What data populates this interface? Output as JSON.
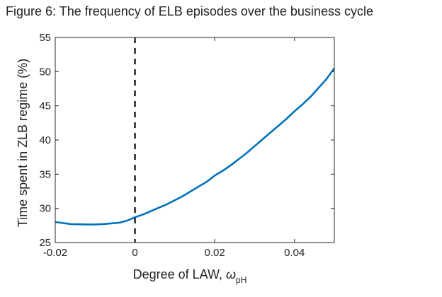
{
  "figure": {
    "caption": "Figure 6: The frequency of ELB episodes over the business cycle"
  },
  "chart_data": {
    "type": "line",
    "ylabel": "Time spent in ZLB regime (%)",
    "xlabel": {
      "text": "Degree of LAW, ",
      "symbol": "ω",
      "subscript": "pH"
    },
    "xlim": [
      -0.02,
      0.05
    ],
    "ylim": [
      25,
      55
    ],
    "x_ticks": [
      {
        "value": -0.02,
        "label": "-0.02"
      },
      {
        "value": 0,
        "label": "0"
      },
      {
        "value": 0.02,
        "label": "0.02"
      },
      {
        "value": 0.04,
        "label": "0.04"
      }
    ],
    "y_ticks": [
      {
        "value": 25,
        "label": "25"
      },
      {
        "value": 30,
        "label": "30"
      },
      {
        "value": 35,
        "label": "35"
      },
      {
        "value": 40,
        "label": "40"
      },
      {
        "value": 45,
        "label": "45"
      },
      {
        "value": 50,
        "label": "50"
      },
      {
        "value": 55,
        "label": "55"
      }
    ],
    "grid": false,
    "reference_line": {
      "x": 0,
      "style": "dashed",
      "color": "#000000"
    },
    "series": [
      {
        "color": "#0072BD",
        "x": [
          -0.02,
          -0.016,
          -0.012,
          -0.01,
          -0.008,
          -0.006,
          -0.004,
          -0.002,
          0,
          0.002,
          0.004,
          0.006,
          0.008,
          0.01,
          0.012,
          0.014,
          0.016,
          0.018,
          0.02,
          0.022,
          0.024,
          0.026,
          0.028,
          0.03,
          0.032,
          0.034,
          0.036,
          0.038,
          0.04,
          0.042,
          0.044,
          0.046,
          0.048,
          0.05
        ],
        "y": [
          28.0,
          27.7,
          27.65,
          27.65,
          27.7,
          27.8,
          27.9,
          28.2,
          28.7,
          29.1,
          29.6,
          30.1,
          30.6,
          31.2,
          31.8,
          32.5,
          33.2,
          33.9,
          34.8,
          35.5,
          36.3,
          37.2,
          38.1,
          39.1,
          40.1,
          41.1,
          42.1,
          43.1,
          44.2,
          45.2,
          46.3,
          47.6,
          48.9,
          50.5
        ]
      }
    ]
  }
}
